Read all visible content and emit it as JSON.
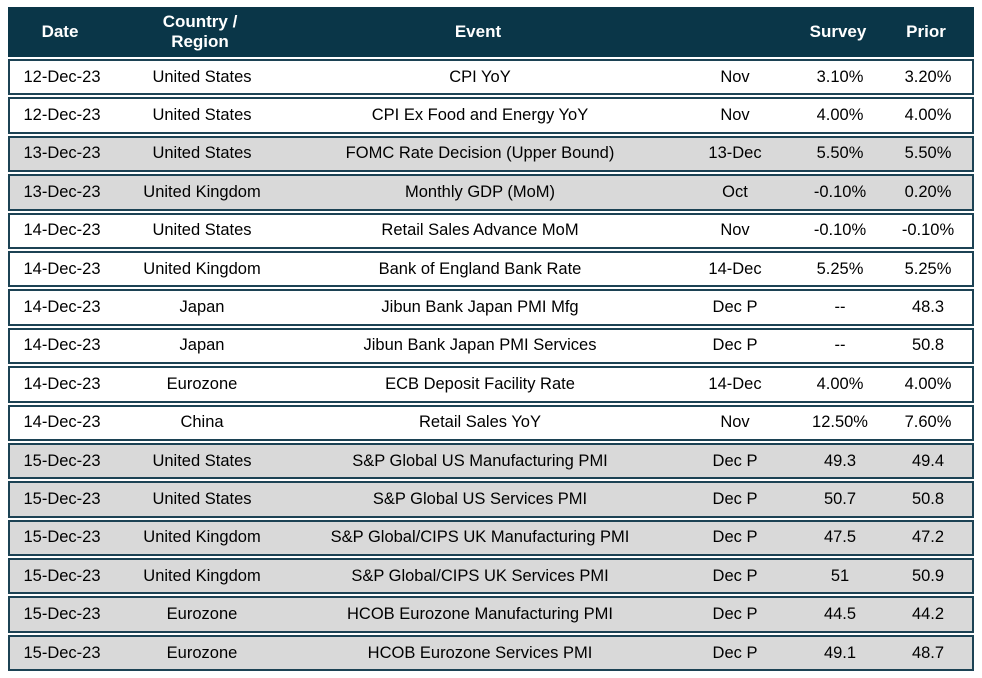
{
  "colors": {
    "header_bg": "#0a3648",
    "row_border": "#1c4254",
    "shaded_row_bg": "#d9d9d9",
    "header_text": "#ffffff",
    "body_text": "#000000"
  },
  "table": {
    "columns": [
      {
        "key": "date",
        "label": "Date"
      },
      {
        "key": "country",
        "label": "Country /\nRegion"
      },
      {
        "key": "event",
        "label": "Event"
      },
      {
        "key": "period",
        "label": ""
      },
      {
        "key": "survey",
        "label": "Survey"
      },
      {
        "key": "prior",
        "label": "Prior"
      }
    ],
    "rows": [
      {
        "date": "12-Dec-23",
        "country": "United States",
        "event": "CPI YoY",
        "period": "Nov",
        "survey": "3.10%",
        "prior": "3.20%",
        "shaded": false
      },
      {
        "date": "12-Dec-23",
        "country": "United States",
        "event": "CPI Ex Food and Energy YoY",
        "period": "Nov",
        "survey": "4.00%",
        "prior": "4.00%",
        "shaded": false
      },
      {
        "date": "13-Dec-23",
        "country": "United States",
        "event": "FOMC Rate Decision (Upper Bound)",
        "period": "13-Dec",
        "survey": "5.50%",
        "prior": "5.50%",
        "shaded": true
      },
      {
        "date": "13-Dec-23",
        "country": "United Kingdom",
        "event": "Monthly GDP (MoM)",
        "period": "Oct",
        "survey": "-0.10%",
        "prior": "0.20%",
        "shaded": true
      },
      {
        "date": "14-Dec-23",
        "country": "United States",
        "event": "Retail Sales Advance MoM",
        "period": "Nov",
        "survey": "-0.10%",
        "prior": "-0.10%",
        "shaded": false
      },
      {
        "date": "14-Dec-23",
        "country": "United Kingdom",
        "event": "Bank of England Bank Rate",
        "period": "14-Dec",
        "survey": "5.25%",
        "prior": "5.25%",
        "shaded": false
      },
      {
        "date": "14-Dec-23",
        "country": "Japan",
        "event": "Jibun Bank Japan PMI Mfg",
        "period": "Dec P",
        "survey": "--",
        "prior": "48.3",
        "shaded": false
      },
      {
        "date": "14-Dec-23",
        "country": "Japan",
        "event": "Jibun Bank Japan PMI Services",
        "period": "Dec P",
        "survey": "--",
        "prior": "50.8",
        "shaded": false
      },
      {
        "date": "14-Dec-23",
        "country": "Eurozone",
        "event": "ECB Deposit Facility Rate",
        "period": "14-Dec",
        "survey": "4.00%",
        "prior": "4.00%",
        "shaded": false
      },
      {
        "date": "14-Dec-23",
        "country": "China",
        "event": "Retail Sales YoY",
        "period": "Nov",
        "survey": "12.50%",
        "prior": "7.60%",
        "shaded": false
      },
      {
        "date": "15-Dec-23",
        "country": "United States",
        "event": "S&P Global US Manufacturing PMI",
        "period": "Dec P",
        "survey": "49.3",
        "prior": "49.4",
        "shaded": true
      },
      {
        "date": "15-Dec-23",
        "country": "United States",
        "event": "S&P Global US Services PMI",
        "period": "Dec P",
        "survey": "50.7",
        "prior": "50.8",
        "shaded": true
      },
      {
        "date": "15-Dec-23",
        "country": "United Kingdom",
        "event": "S&P Global/CIPS UK Manufacturing PMI",
        "period": "Dec P",
        "survey": "47.5",
        "prior": "47.2",
        "shaded": true
      },
      {
        "date": "15-Dec-23",
        "country": "United Kingdom",
        "event": "S&P Global/CIPS UK Services PMI",
        "period": "Dec P",
        "survey": "51",
        "prior": "50.9",
        "shaded": true
      },
      {
        "date": "15-Dec-23",
        "country": "Eurozone",
        "event": "HCOB Eurozone Manufacturing PMI",
        "period": "Dec P",
        "survey": "44.5",
        "prior": "44.2",
        "shaded": true
      },
      {
        "date": "15-Dec-23",
        "country": "Eurozone",
        "event": "HCOB Eurozone Services PMI",
        "period": "Dec P",
        "survey": "49.1",
        "prior": "48.7",
        "shaded": true
      }
    ]
  }
}
